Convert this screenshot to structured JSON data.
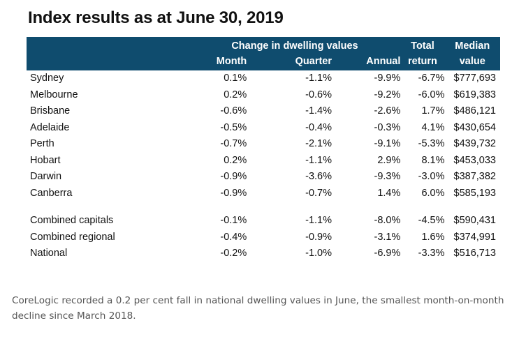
{
  "title": "Index results as at June 30, 2019",
  "header": {
    "group_label": "Change in dwelling values",
    "month": "Month",
    "quarter": "Quarter",
    "annual": "Annual",
    "total_1": "Total",
    "total_2": "return",
    "median_1": "Median",
    "median_2": "value"
  },
  "rows": [
    {
      "name": "Sydney",
      "month": "0.1%",
      "quarter": "-1.1%",
      "annual": "-9.9%",
      "total": "-6.7%",
      "median": "$777,693"
    },
    {
      "name": "Melbourne",
      "month": "0.2%",
      "quarter": "-0.6%",
      "annual": "-9.2%",
      "total": "-6.0%",
      "median": "$619,383"
    },
    {
      "name": "Brisbane",
      "month": "-0.6%",
      "quarter": "-1.4%",
      "annual": "-2.6%",
      "total": "1.7%",
      "median": "$486,121"
    },
    {
      "name": "Adelaide",
      "month": "-0.5%",
      "quarter": "-0.4%",
      "annual": "-0.3%",
      "total": "4.1%",
      "median": "$430,654"
    },
    {
      "name": "Perth",
      "month": "-0.7%",
      "quarter": "-2.1%",
      "annual": "-9.1%",
      "total": "-5.3%",
      "median": "$439,732"
    },
    {
      "name": "Hobart",
      "month": "0.2%",
      "quarter": "-1.1%",
      "annual": "2.9%",
      "total": "8.1%",
      "median": "$453,033"
    },
    {
      "name": "Darwin",
      "month": "-0.9%",
      "quarter": "-3.6%",
      "annual": "-9.3%",
      "total": "-3.0%",
      "median": "$387,382"
    },
    {
      "name": "Canberra",
      "month": "-0.9%",
      "quarter": "-0.7%",
      "annual": "1.4%",
      "total": "6.0%",
      "median": "$585,193"
    }
  ],
  "combined_rows": [
    {
      "name": "Combined capitals",
      "month": "-0.1%",
      "quarter": "-1.1%",
      "annual": "-8.0%",
      "total": "-4.5%",
      "median": "$590,431"
    },
    {
      "name": "Combined regional",
      "month": "-0.4%",
      "quarter": "-0.9%",
      "annual": "-3.1%",
      "total": "1.6%",
      "median": "$374,991"
    },
    {
      "name": "National",
      "month": "-0.2%",
      "quarter": "-1.0%",
      "annual": "-6.9%",
      "total": "-3.3%",
      "median": "$516,713"
    }
  ],
  "caption": "CoreLogic recorded a 0.2 per cent fall in national dwelling values in June, the smallest month-on-month decline since March 2018.",
  "colors": {
    "header_bg": "#0f4c6e",
    "header_text": "#ffffff",
    "caption_text": "#555555"
  }
}
